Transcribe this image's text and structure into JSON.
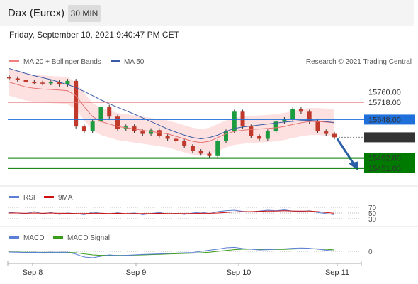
{
  "header": {
    "title": "Dax (Eurex)",
    "interval": "30 MIN"
  },
  "datetime": "Friday, September 10, 2021 9:40:47 PM CET",
  "legend": {
    "bollinger": {
      "label": "MA 20 + Bollinger Bands",
      "color": "#f08080"
    },
    "ma50": {
      "label": "MA 50",
      "color": "#3b5ba5"
    },
    "copyright": "Research © 2021 Trading Central"
  },
  "colors": {
    "bull": "#1a9c3f",
    "bear": "#c0392b",
    "band_fill": "#fde1e1",
    "resistance": "#e57373",
    "support": "#007a00",
    "pivot": "#1e6fd9",
    "current": "#333333",
    "arrow": "#2a5fa8",
    "rsi": "#5b7fd4",
    "rsi_ma": "#cc1111",
    "macd": "#5b7fd4",
    "macd_signal": "#3a9c1a"
  },
  "chart_data": [
    {
      "type": "line",
      "title": "Dax (Eurex) 30 MIN",
      "ylim": [
        15390,
        15845
      ],
      "x_ticks": [
        "Sep 8",
        "Sep 9",
        "Sep 10",
        "Sep 11"
      ],
      "price_levels": [
        {
          "label": "15760.00",
          "value": 15760,
          "kind": "resistance"
        },
        {
          "label": "15718.00",
          "value": 15718,
          "kind": "resistance"
        },
        {
          "label": "15648.00",
          "value": 15648,
          "kind": "pivot"
        },
        {
          "label": "15576.00",
          "value": 15576,
          "kind": "current"
        },
        {
          "label": "15492.00",
          "value": 15492,
          "kind": "support"
        },
        {
          "label": "15451.00",
          "value": 15451,
          "kind": "support"
        }
      ],
      "series": [
        {
          "name": "MA 20 + Bollinger Bands",
          "values": [
            15800,
            15790,
            15780,
            15775,
            15772,
            15770,
            15768,
            15765,
            15745,
            15700,
            15660,
            15640,
            15630,
            15620,
            15615,
            15610,
            15605,
            15600,
            15595,
            15590,
            15580,
            15570,
            15560,
            15555,
            15560,
            15575,
            15590,
            15600,
            15605,
            15608,
            15610,
            15612,
            15615,
            15620,
            15628,
            15635,
            15640,
            15640,
            15638,
            15635
          ]
        },
        {
          "name": "MA 50",
          "values": [
            15855,
            15845,
            15835,
            15826,
            15818,
            15810,
            15800,
            15790,
            15778,
            15762,
            15745,
            15728,
            15712,
            15698,
            15684,
            15670,
            15655,
            15640,
            15625,
            15610,
            15597,
            15585,
            15575,
            15570,
            15575,
            15585,
            15600,
            15612,
            15618,
            15622,
            15626,
            15630,
            15634,
            15638,
            15641,
            15644,
            15645,
            15643,
            15640,
            15636
          ]
        }
      ],
      "candles_close": [
        15815,
        15808,
        15800,
        15798,
        15795,
        15800,
        15790,
        15805,
        15620,
        15600,
        15640,
        15700,
        15660,
        15610,
        15620,
        15600,
        15590,
        15605,
        15580,
        15570,
        15560,
        15540,
        15520,
        15510,
        15500,
        15560,
        15600,
        15680,
        15620,
        15580,
        15570,
        15600,
        15640,
        15650,
        15690,
        15680,
        15640,
        15600,
        15590,
        15576
      ]
    },
    {
      "type": "line",
      "title": "RSI",
      "y_ticks": [
        "70",
        "50",
        "30"
      ],
      "ylim": [
        20,
        80
      ],
      "series": [
        {
          "name": "RSI",
          "values": [
            52,
            50,
            48,
            55,
            47,
            52,
            45,
            50,
            48,
            44,
            53,
            49,
            46,
            51,
            47,
            50,
            44,
            48,
            52,
            46,
            49,
            45,
            50,
            53,
            48,
            55,
            58,
            60,
            56,
            54,
            57,
            60,
            58,
            61,
            57,
            55,
            58,
            52,
            48,
            44
          ]
        },
        {
          "name": "9MA",
          "values": [
            50,
            50,
            49,
            50,
            49,
            50,
            49,
            49,
            48,
            48,
            49,
            49,
            48,
            49,
            48,
            48,
            48,
            48,
            49,
            48,
            48,
            48,
            48,
            49,
            49,
            50,
            52,
            54,
            55,
            55,
            56,
            57,
            57,
            58,
            57,
            57,
            57,
            55,
            52,
            49
          ]
        }
      ]
    },
    {
      "type": "line",
      "title": "MACD",
      "y_ticks": [
        "0"
      ],
      "ylim": [
        -60,
        60
      ],
      "series": [
        {
          "name": "MACD",
          "values": [
            -5,
            -6,
            -8,
            -7,
            -8,
            -6,
            -7,
            -6,
            -20,
            -40,
            -45,
            -35,
            -25,
            -30,
            -28,
            -25,
            -22,
            -20,
            -18,
            -15,
            -12,
            -10,
            -8,
            0,
            8,
            15,
            25,
            28,
            20,
            15,
            10,
            12,
            15,
            18,
            22,
            24,
            22,
            15,
            8,
            2
          ]
        },
        {
          "name": "MACD Signal",
          "values": [
            -4,
            -5,
            -6,
            -6,
            -7,
            -7,
            -7,
            -7,
            -10,
            -18,
            -25,
            -28,
            -27,
            -28,
            -28,
            -27,
            -25,
            -23,
            -21,
            -19,
            -17,
            -15,
            -13,
            -10,
            -6,
            0,
            6,
            12,
            15,
            15,
            14,
            13,
            13,
            14,
            16,
            18,
            19,
            18,
            15,
            10
          ]
        }
      ]
    }
  ]
}
